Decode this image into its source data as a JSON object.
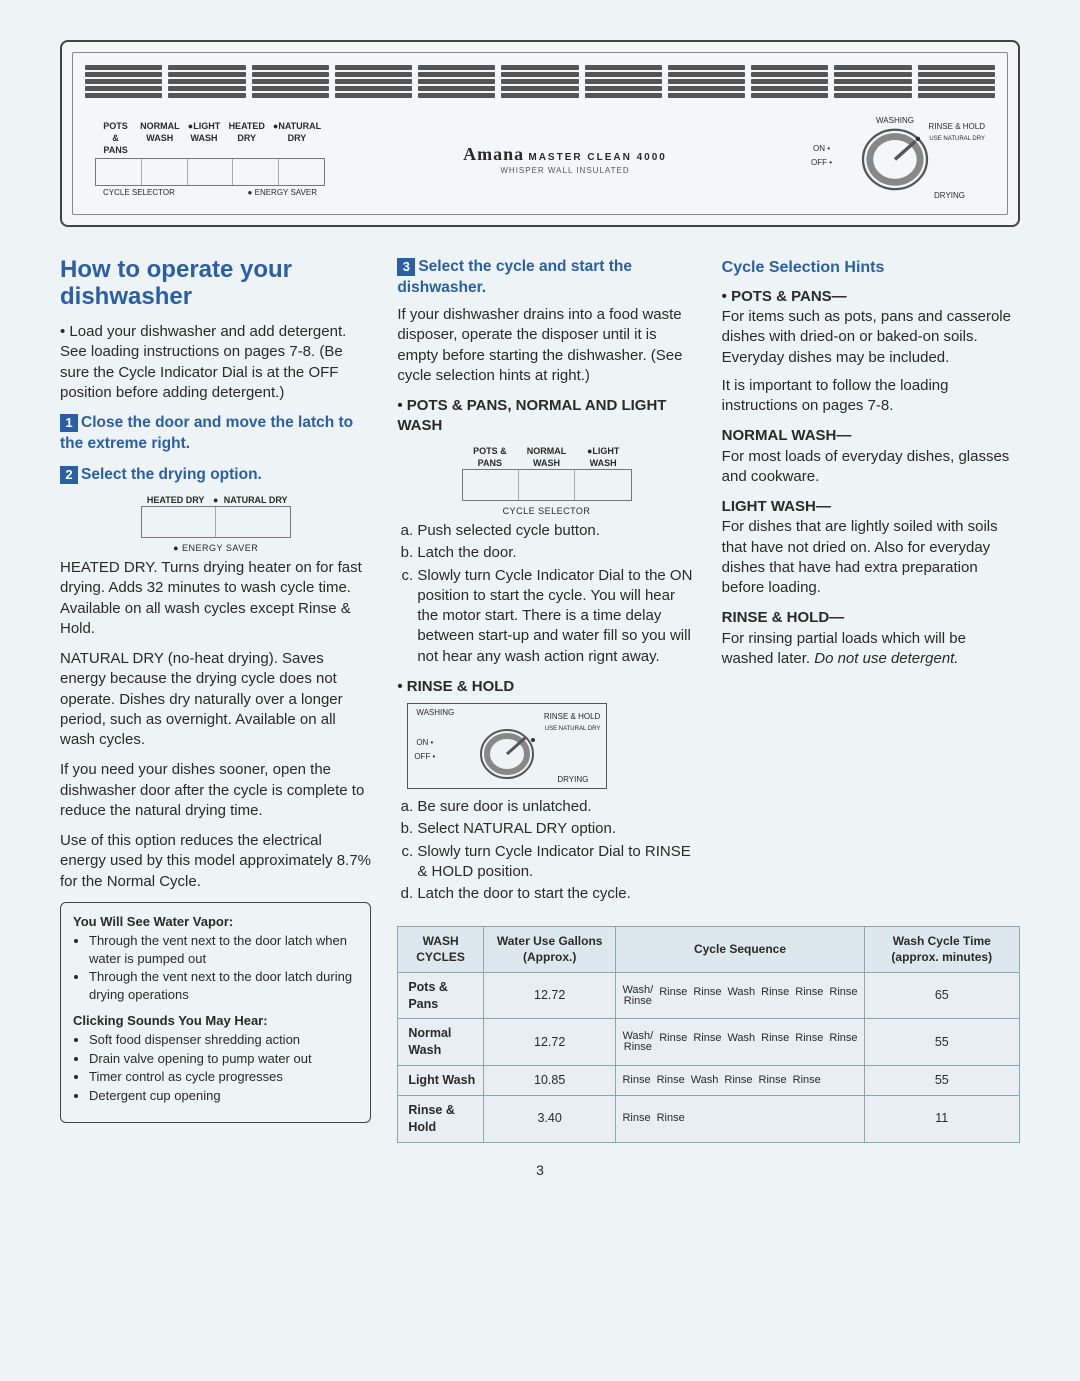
{
  "panel": {
    "brand": "Amana",
    "model": "MASTER CLEAN 4000",
    "subtitle": "WHISPER WALL INSULATED",
    "cycle_buttons": [
      "POTS & PANS",
      "NORMAL WASH",
      "LIGHT WASH"
    ],
    "dry_buttons": [
      "HEATED DRY",
      "NATURAL DRY"
    ],
    "left_label": "CYCLE SELECTOR",
    "right_label": "● ENERGY SAVER",
    "dial": {
      "washing": "WASHING",
      "rinse_hold": "RINSE & HOLD",
      "rinse_sub": "USE NATURAL DRY",
      "on": "ON",
      "off": "OFF",
      "drying": "DRYING"
    }
  },
  "col1": {
    "title": "How to operate your dishwasher",
    "intro": "• Load your dishwasher and add detergent. See loading instructions on pages 7-8. (Be sure the Cycle Indicator Dial is at the OFF position before adding detergent.)",
    "step1": "Close the door and move the latch to the extreme right.",
    "step2": "Select the drying option.",
    "mini_dry": {
      "heated": "HEATED DRY",
      "natural": "NATURAL DRY",
      "caption": "● ENERGY SAVER"
    },
    "heated_dry": "HEATED DRY. Turns drying heater on for fast drying. Adds 32 minutes to wash cycle time. Available on all wash cycles except Rinse & Hold.",
    "natural_dry": "NATURAL DRY (no-heat drying). Saves energy because the drying cycle does not operate. Dishes dry naturally over a longer period, such as overnight. Available on all wash cycles.",
    "sooner": "If you need your dishes sooner, open the dishwasher door after the cycle is complete to reduce the natural drying time.",
    "energy": "Use of this option reduces the electrical energy used by this model approximately 8.7% for the Normal Cycle.",
    "vapor_h": "You Will See Water Vapor:",
    "vapor": [
      "Through the vent next to the door latch when water is pumped out",
      "Through the vent next to the door latch during drying operations"
    ],
    "click_h": "Clicking Sounds You May Hear:",
    "click": [
      "Soft food dispenser shredding action",
      "Drain valve opening to pump water out",
      "Timer control as cycle progresses",
      "Detergent cup opening"
    ]
  },
  "col2": {
    "step3": "Select the cycle and start the dishwasher.",
    "drains": "If your dishwasher drains into a food waste disposer, operate the disposer until it is empty before starting the dishwasher. (See cycle selection hints at right.)",
    "pots_h": "• POTS & PANS, NORMAL AND LIGHT WASH",
    "mini_cycle": {
      "pots": "POTS & PANS",
      "normal": "NORMAL WASH",
      "light": "LIGHT WASH",
      "caption": "CYCLE SELECTOR"
    },
    "steps_a": [
      "Push selected cycle button.",
      "Latch the door.",
      "Slowly turn Cycle Indicator Dial to the ON position to start the cycle. You will hear the motor start. There is a time delay between start-up and water fill so you will not hear any wash action rignt away."
    ],
    "rinse_h": "• RINSE & HOLD",
    "steps_b": [
      "Be sure door is unlatched.",
      "Select NATURAL DRY option.",
      "Slowly turn Cycle Indicator Dial to RINSE & HOLD position.",
      "Latch the door to start the cycle."
    ]
  },
  "col3": {
    "title": "Cycle Selection Hints",
    "pots_h": "• POTS & PANS—",
    "pots": "For items such as pots, pans and casserole dishes with dried-on or baked-on soils. Everyday dishes may be included.",
    "load": "It is important to follow the loading instructions on pages 7-8.",
    "normal_h": "NORMAL WASH—",
    "normal": "For most loads of everyday dishes, glasses and cookware.",
    "light_h": "LIGHT WASH—",
    "light": "For dishes that are lightly soiled with soils that have not dried on. Also for everyday dishes that have had extra preparation before loading.",
    "rinse_h": "RINSE & HOLD—",
    "rinse": "For rinsing partial loads which will be washed later. ",
    "rinse_em": "Do not use detergent."
  },
  "table": {
    "headers": [
      "WASH CYCLES",
      "Water Use Gallons (Approx.)",
      "Cycle Sequence",
      "Wash Cycle Time (approx. minutes)"
    ],
    "rows": [
      {
        "name": "Pots & Pans",
        "water": "12.72",
        "seq": [
          "Wash/\nRinse",
          "Rinse",
          "Rinse",
          "Wash",
          "Rinse",
          "Rinse",
          "Rinse"
        ],
        "time": "65"
      },
      {
        "name": "Normal Wash",
        "water": "12.72",
        "seq": [
          "Wash/\nRinse",
          "Rinse",
          "Rinse",
          "Wash",
          "Rinse",
          "Rinse",
          "Rinse"
        ],
        "time": "55"
      },
      {
        "name": "Light Wash",
        "water": "10.85",
        "seq": [
          "Rinse",
          "Rinse",
          "Wash",
          "Rinse",
          "Rinse",
          "Rinse"
        ],
        "time": "55"
      },
      {
        "name": "Rinse & Hold",
        "water": "3.40",
        "seq": [
          "Rinse",
          "Rinse"
        ],
        "time": "11"
      }
    ]
  },
  "pagenum": "3"
}
